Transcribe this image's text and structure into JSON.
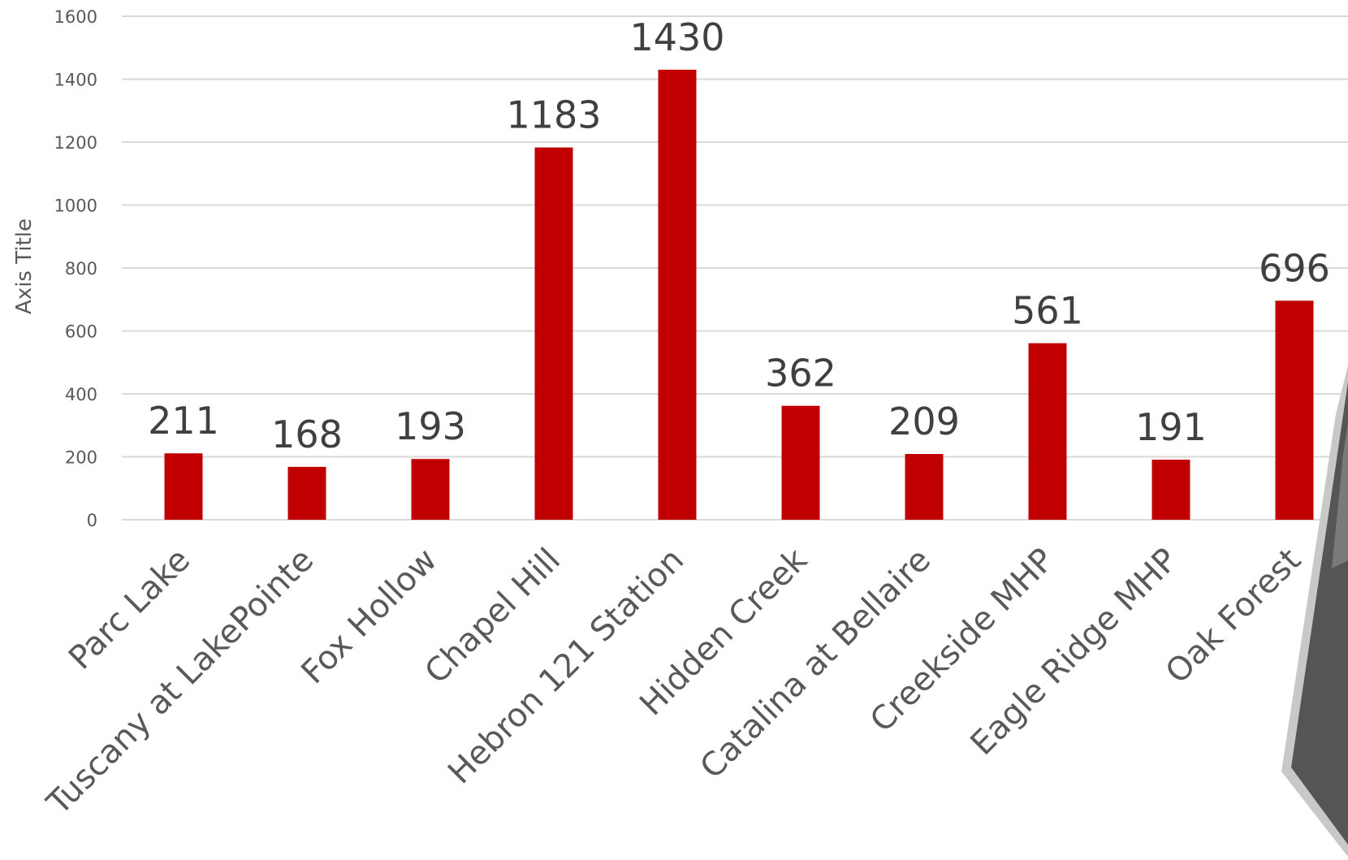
{
  "chart_data": {
    "type": "bar",
    "title": "",
    "xlabel": "",
    "ylabel": "Axis Title",
    "ylim": [
      0,
      1600
    ],
    "yticks": [
      0,
      200,
      400,
      600,
      800,
      1000,
      1200,
      1400,
      1600
    ],
    "grid": true,
    "legend": "none",
    "categories": [
      "Parc Lake",
      "Tuscany at LakePointe",
      "Fox Hollow",
      "Chapel Hill",
      "Hebron 121 Station",
      "Hidden Creek",
      "Catalina at Bellaire",
      "Creekside MHP",
      "Eagle Ridge MHP",
      "Oak Forest"
    ],
    "values": [
      211,
      168,
      193,
      1183,
      1430,
      362,
      209,
      561,
      191,
      696
    ],
    "colors": {
      "bar": "#c00000",
      "grid": "#d9d9d9",
      "axis_text": "#595959",
      "label_text": "#404040"
    }
  },
  "decoration": {
    "corner_shape": "dark-gray-bevel-shape"
  }
}
